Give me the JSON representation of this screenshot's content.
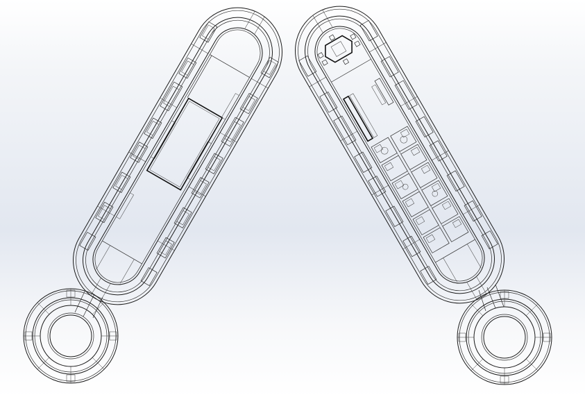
{
  "view": {
    "background_top": "#ffffff",
    "background_mid": "#e2e7f0",
    "line_color": "#1a1a1a"
  },
  "modules": [
    {
      "id": "module-left",
      "description_icon": "capsule-module-outline"
    },
    {
      "id": "module-right",
      "description_icon": "capsule-module-outline"
    }
  ],
  "hubs": [
    {
      "id": "hub-left",
      "description_icon": "ring-hub-outline"
    },
    {
      "id": "hub-right",
      "description_icon": "ring-hub-outline"
    }
  ]
}
